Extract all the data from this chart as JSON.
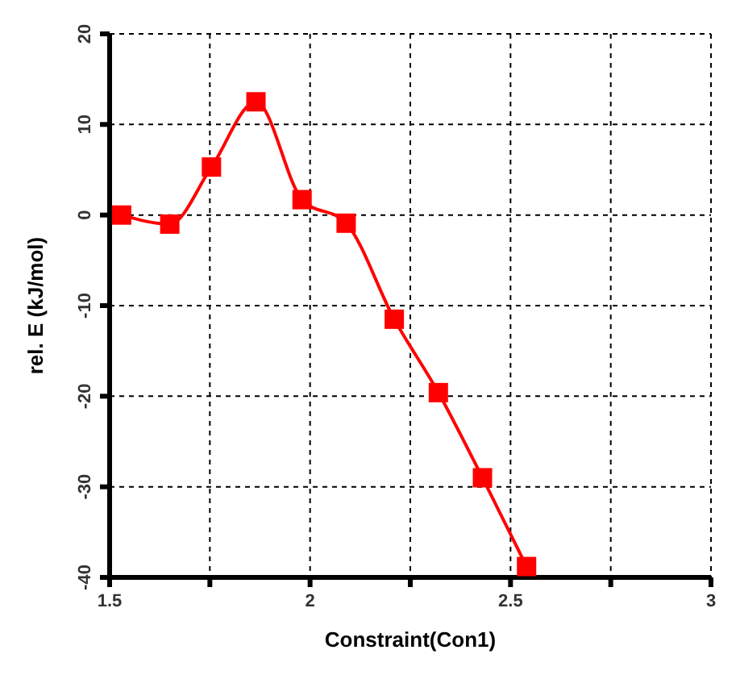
{
  "chart_data": {
    "type": "line",
    "xlabel": "Constraint(Con1)",
    "ylabel": "rel. E (kJ/mol)",
    "x": [
      1.53,
      1.65,
      1.754,
      1.865,
      1.98,
      2.09,
      2.21,
      2.32,
      2.43,
      2.54
    ],
    "series": [
      {
        "color": "#ff0000",
        "values": [
          0,
          -1,
          5.3,
          12.5,
          1.7,
          -0.9,
          -11.5,
          -19.6,
          -29,
          -38.8
        ]
      }
    ],
    "xlim": [
      1.5,
      3
    ],
    "xticks": [
      1.5,
      {
        "value": 1.75,
        "label": null
      },
      2,
      {
        "value": 2.25,
        "label": null
      },
      2.5,
      {
        "value": 2.75,
        "label": null
      },
      3
    ],
    "ylim": [
      -40,
      20
    ],
    "yticks": [
      -40,
      -30,
      -20,
      -10,
      0,
      10,
      20
    ],
    "grid": true,
    "marker": "square",
    "line_style": "solid"
  }
}
